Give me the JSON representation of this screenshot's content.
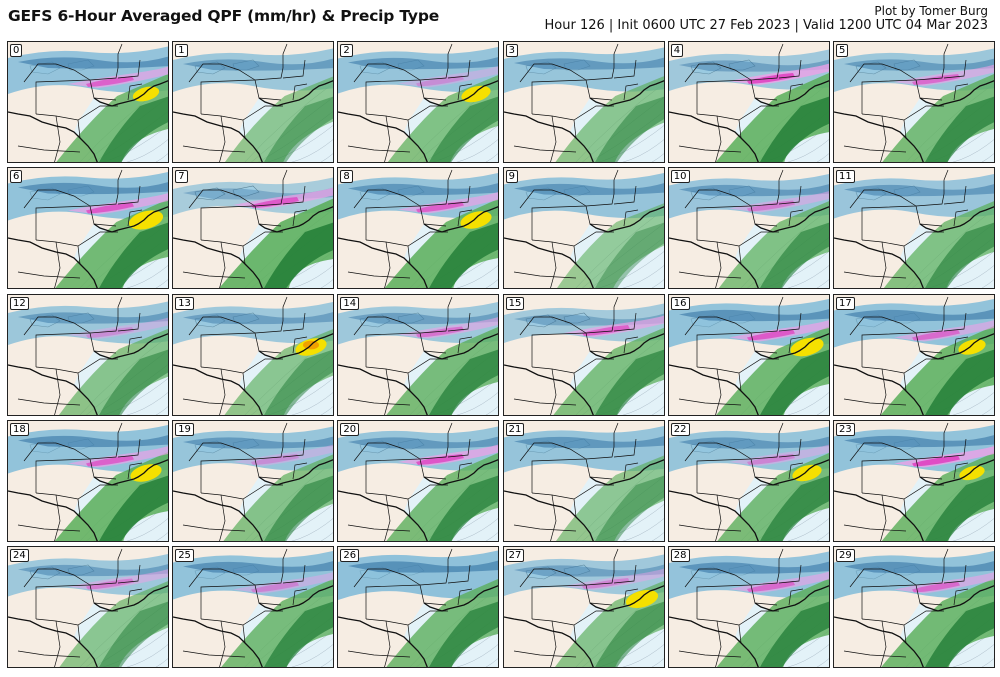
{
  "header": {
    "title": "GEFS 6-Hour Averaged QPF (mm/hr) & Precip Type",
    "credit": "Plot by Tomer Burg",
    "subtitle": "Hour 126 | Init 0600 UTC 27 Feb 2023 | Valid 1200 UTC 04 Mar 2023"
  },
  "colors": {
    "land": "#f6ede3",
    "ocean": "#e3f2f8",
    "rain": "#5aae5a",
    "rain_heavy": "#1f7a34",
    "snow": "#7fbad8",
    "snow_heavy": "#3a78a8",
    "mix": "#e040c0",
    "ice": "#f0a0e8",
    "ice_heavy": "#e01890",
    "rain_intense": "#f5e000",
    "rain_extreme": "#f0a000",
    "border": "#111111",
    "isobar": "#8a9aaa"
  },
  "members": [
    {
      "label": "0",
      "snow": 0.8,
      "rain": 0.75,
      "mix": 0.7,
      "yellow": 0.55,
      "orange": 0.0
    },
    {
      "label": "1",
      "snow": 0.6,
      "rain": 0.4,
      "mix": 0.0,
      "yellow": 0.0,
      "orange": 0.0
    },
    {
      "label": "2",
      "snow": 0.75,
      "rain": 0.6,
      "mix": 0.2,
      "yellow": 0.7,
      "orange": 0.0
    },
    {
      "label": "3",
      "snow": 0.7,
      "rain": 0.45,
      "mix": 0.0,
      "yellow": 0.0,
      "orange": 0.0
    },
    {
      "label": "4",
      "snow": 0.5,
      "rain": 0.9,
      "mix": 0.95,
      "yellow": 0.0,
      "orange": 0.0
    },
    {
      "label": "5",
      "snow": 0.6,
      "rain": 0.75,
      "mix": 0.6,
      "yellow": 0.0,
      "orange": 0.0
    },
    {
      "label": "6",
      "snow": 0.85,
      "rain": 0.85,
      "mix": 0.8,
      "yellow": 0.95,
      "orange": 0.0
    },
    {
      "label": "7",
      "snow": 0.3,
      "rain": 0.95,
      "mix": 0.8,
      "yellow": 0.0,
      "orange": 0.0
    },
    {
      "label": "8",
      "snow": 0.75,
      "rain": 0.9,
      "mix": 0.7,
      "yellow": 0.8,
      "orange": 0.0
    },
    {
      "label": "9",
      "snow": 0.75,
      "rain": 0.3,
      "mix": 0.0,
      "yellow": 0.0,
      "orange": 0.0
    },
    {
      "label": "10",
      "snow": 0.65,
      "rain": 0.6,
      "mix": 0.4,
      "yellow": 0.0,
      "orange": 0.0
    },
    {
      "label": "11",
      "snow": 0.65,
      "rain": 0.6,
      "mix": 0.0,
      "yellow": 0.0,
      "orange": 0.0
    },
    {
      "label": "12",
      "snow": 0.6,
      "rain": 0.5,
      "mix": 0.2,
      "yellow": 0.0,
      "orange": 0.0
    },
    {
      "label": "13",
      "snow": 0.55,
      "rain": 0.45,
      "mix": 0.0,
      "yellow": 0.8,
      "orange": 0.8
    },
    {
      "label": "14",
      "snow": 0.55,
      "rain": 0.75,
      "mix": 0.5,
      "yellow": 0.0,
      "orange": 0.0
    },
    {
      "label": "15",
      "snow": 0.4,
      "rain": 0.65,
      "mix": 0.7,
      "yellow": 0.0,
      "orange": 0.0
    },
    {
      "label": "16",
      "snow": 0.85,
      "rain": 0.85,
      "mix": 0.8,
      "yellow": 0.9,
      "orange": 0.0
    },
    {
      "label": "17",
      "snow": 0.85,
      "rain": 0.9,
      "mix": 0.6,
      "yellow": 0.6,
      "orange": 0.0
    },
    {
      "label": "18",
      "snow": 0.85,
      "rain": 0.9,
      "mix": 0.7,
      "yellow": 0.8,
      "orange": 0.0
    },
    {
      "label": "19",
      "snow": 0.7,
      "rain": 0.55,
      "mix": 0.2,
      "yellow": 0.0,
      "orange": 0.0
    },
    {
      "label": "20",
      "snow": 0.7,
      "rain": 0.75,
      "mix": 0.85,
      "yellow": 0.0,
      "orange": 0.0
    },
    {
      "label": "21",
      "snow": 0.75,
      "rain": 0.4,
      "mix": 0.0,
      "yellow": 0.0,
      "orange": 0.0
    },
    {
      "label": "22",
      "snow": 0.7,
      "rain": 0.75,
      "mix": 0.3,
      "yellow": 0.7,
      "orange": 0.0
    },
    {
      "label": "23",
      "snow": 0.85,
      "rain": 0.8,
      "mix": 0.95,
      "yellow": 0.5,
      "orange": 0.0
    },
    {
      "label": "24",
      "snow": 0.55,
      "rain": 0.45,
      "mix": 0.4,
      "yellow": 0.0,
      "orange": 0.0
    },
    {
      "label": "25",
      "snow": 0.85,
      "rain": 0.75,
      "mix": 0.3,
      "yellow": 0.0,
      "orange": 0.0
    },
    {
      "label": "26",
      "snow": 0.9,
      "rain": 0.75,
      "mix": 0.0,
      "yellow": 0.0,
      "orange": 0.0
    },
    {
      "label": "27",
      "snow": 0.5,
      "rain": 0.5,
      "mix": 0.3,
      "yellow": 0.85,
      "orange": 0.0
    },
    {
      "label": "28",
      "snow": 0.8,
      "rain": 0.8,
      "mix": 0.6,
      "yellow": 0.0,
      "orange": 0.0
    },
    {
      "label": "29",
      "snow": 0.85,
      "rain": 0.85,
      "mix": 0.6,
      "yellow": 0.0,
      "orange": 0.0
    }
  ]
}
